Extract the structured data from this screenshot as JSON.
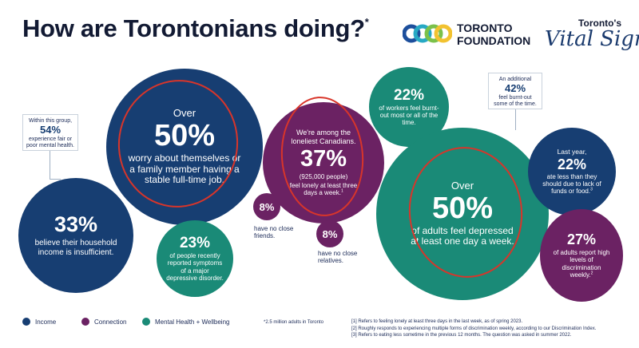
{
  "header": {
    "title": "How are Torontonians doing?",
    "title_mark": "*",
    "foundation_line1": "TORONTO",
    "foundation_line2": "FOUNDATION",
    "vital_signs_top": "Toronto's",
    "vital_signs_main": "Vital Signs"
  },
  "callouts": {
    "left": {
      "lead": "Within this group,",
      "pct": "54%",
      "text": "experience fair or poor mental health."
    },
    "right": {
      "lead": "An additional",
      "pct": "42%",
      "text": "feel burnt-out some of the time."
    }
  },
  "stats": {
    "worry": {
      "lead": "Over",
      "pct": "50%",
      "text": "worry about themselves or a family member having a stable full-time job."
    },
    "income": {
      "pct": "33%",
      "text": "believe their household income is insufficient."
    },
    "depressive": {
      "pct": "23%",
      "text": "of people recently reported symptoms of a major depressive disorder."
    },
    "lonely": {
      "lead": "We're among the loneliest Canadians.",
      "pct": "37%",
      "sub": "(925,000 people)",
      "text": "feel lonely at least three days a week.",
      "ref": "1"
    },
    "friends": {
      "pct": "8%",
      "text": "have no close friends."
    },
    "relatives": {
      "pct": "8%",
      "text": "have no close relatives."
    },
    "workers": {
      "pct": "22%",
      "text": "of workers feel burnt-out most or all of the time."
    },
    "depressed": {
      "lead": "Over",
      "pct": "50%",
      "text": "of adults feel depressed at least one day a week."
    },
    "food": {
      "lead": "Last year,",
      "pct": "22%",
      "text": "ate less than they should due to lack of funds or food.",
      "ref": "3"
    },
    "discrimination": {
      "pct": "27%",
      "text": "of adults report high levels of discrimination weekly.",
      "ref": "2"
    }
  },
  "legend": [
    {
      "label": "Income",
      "color": "#173e72"
    },
    {
      "label": "Connection",
      "color": "#6b2263"
    },
    {
      "label": "Mental Health + Wellbeing",
      "color": "#1a8a77"
    }
  ],
  "footnotes": {
    "asterisk": "*2.5 million adults in Toronto",
    "notes": [
      "[1] Refers to feeling lonely at least three days in the last week, as of spring 2023.",
      "[2] Roughly responds to experiencing multiple forms of discrimination weekly, according to our Discrimination Index.",
      "[3] Refers to eating less sometime in the previous 12 months. The question was asked in summer 2022."
    ]
  },
  "colors": {
    "income": "#173e72",
    "connection": "#6b2263",
    "wellbeing": "#1a8a77",
    "highlight_ring": "#d8352a"
  }
}
